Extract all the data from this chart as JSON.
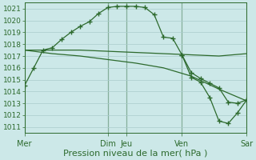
{
  "bg_color": "#cce8e8",
  "grid_color": "#aacccc",
  "line_color": "#2d6a2d",
  "xlabel": "Pression niveau de la mer( hPa )",
  "xlabel_fontsize": 8,
  "ylabel_fontsize": 6.5,
  "ylim": [
    1010.5,
    1021.5
  ],
  "yticks": [
    1011,
    1012,
    1013,
    1014,
    1015,
    1016,
    1017,
    1018,
    1019,
    1020,
    1021
  ],
  "xlim": [
    0,
    48
  ],
  "x_day_labels": [
    "Mer",
    "Dim",
    "Jeu",
    "Ven",
    "Sar"
  ],
  "x_day_positions": [
    0,
    18,
    22,
    34,
    48
  ],
  "vlines_x": [
    0,
    18,
    22,
    34,
    48
  ],
  "series1_x": [
    0,
    2,
    4,
    6,
    8,
    10,
    12,
    14,
    16,
    18,
    20,
    22,
    24,
    26,
    28,
    30,
    32,
    34,
    36,
    38,
    40,
    42,
    44,
    46,
    48
  ],
  "series1_y": [
    1014.5,
    1016.0,
    1017.5,
    1017.7,
    1018.4,
    1019.0,
    1019.5,
    1019.9,
    1020.6,
    1021.1,
    1021.2,
    1021.2,
    1021.2,
    1021.1,
    1020.5,
    1018.6,
    1018.5,
    1017.1,
    1015.6,
    1015.1,
    1014.7,
    1014.3,
    1013.1,
    1013.0,
    1013.3
  ],
  "series2_x": [
    0,
    6,
    12,
    18,
    24,
    30,
    36,
    42,
    48
  ],
  "series2_y": [
    1017.5,
    1017.5,
    1017.5,
    1017.4,
    1017.3,
    1017.2,
    1017.1,
    1017.0,
    1017.2
  ],
  "series3_x": [
    0,
    6,
    12,
    18,
    24,
    30,
    36,
    42,
    48
  ],
  "series3_y": [
    1017.5,
    1017.2,
    1017.0,
    1016.7,
    1016.4,
    1016.0,
    1015.3,
    1014.2,
    1013.2
  ],
  "series4_x": [
    34,
    36,
    38,
    40,
    42,
    44,
    46,
    48
  ],
  "series4_y": [
    1017.1,
    1015.2,
    1014.8,
    1013.5,
    1011.5,
    1011.3,
    1012.2,
    1013.3
  ]
}
